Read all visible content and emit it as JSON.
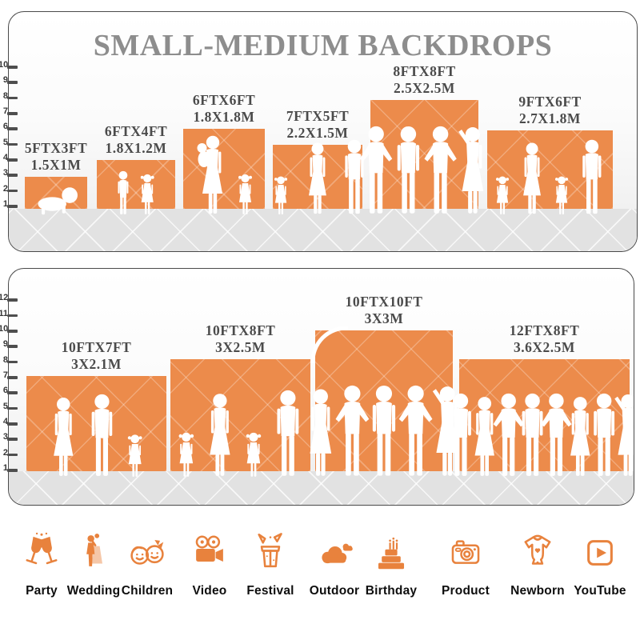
{
  "title": "SMALL-MEDIUM BACKDROPS",
  "panels": [
    {
      "ruler": [
        1,
        2,
        3,
        4,
        5,
        6,
        7,
        8,
        9,
        10
      ],
      "blocks": [
        {
          "size_ft": "5FTX3FT",
          "size_m": "1.5X1M",
          "figures": [
            "baby"
          ]
        },
        {
          "size_ft": "6FTX4FT",
          "size_m": "1.8X1.2M",
          "figures": [
            "boy",
            "girl"
          ]
        },
        {
          "size_ft": "6FTX6FT",
          "size_m": "1.8X1.8M",
          "figures": [
            "womanbaby",
            "girl"
          ]
        },
        {
          "size_ft": "7FTX5FT",
          "size_m": "2.2X1.5M",
          "figures": [
            "girl",
            "woman",
            "man"
          ]
        },
        {
          "size_ft": "8FTX8FT",
          "size_m": "2.5X2.5M",
          "figures": [
            "man2",
            "man",
            "man2",
            "woman2"
          ]
        },
        {
          "size_ft": "9FTX6FT",
          "size_m": "2.7X1.8M",
          "figures": [
            "girl",
            "woman",
            "girl",
            "man"
          ]
        }
      ]
    },
    {
      "ruler": [
        1,
        2,
        3,
        4,
        5,
        6,
        7,
        8,
        9,
        10,
        11,
        12
      ],
      "blocks": [
        {
          "size_ft": "10FTX7FT",
          "size_m": "3X2.1M",
          "figures": [
            "woman",
            "man",
            "girl"
          ]
        },
        {
          "size_ft": "10FTX8FT",
          "size_m": "3X2.5M",
          "figures": [
            "girl",
            "woman",
            "girl",
            "man"
          ]
        },
        {
          "size_ft": "10FTX10FT",
          "size_m": "3X3M",
          "figures": [
            "woman",
            "man2",
            "man",
            "man2",
            "woman2"
          ]
        },
        {
          "size_ft": "12FTX8FT",
          "size_m": "3.6X2.5M",
          "figures": [
            "man",
            "woman",
            "man2",
            "man",
            "man2",
            "woman",
            "man",
            "woman2"
          ]
        }
      ]
    }
  ],
  "categories": [
    {
      "label": "Party",
      "icon": "party-icon"
    },
    {
      "label": "Wedding",
      "icon": "wedding-icon"
    },
    {
      "label": "Children",
      "icon": "children-icon"
    },
    {
      "label": "Video",
      "icon": "video-icon"
    },
    {
      "label": "Festival",
      "icon": "festival-icon"
    },
    {
      "label": "Outdoor",
      "icon": "outdoor-icon"
    },
    {
      "label": "Birthday",
      "icon": "birthday-icon"
    },
    {
      "label": "Product",
      "icon": "product-icon"
    },
    {
      "label": "Newborn",
      "icon": "newborn-icon"
    },
    {
      "label": "YouTube",
      "icon": "youtube-icon"
    }
  ],
  "colors": {
    "backdrop_orange": "#ec8b4b",
    "icon_orange": "#e8823d",
    "title_gray": "#8d8d8d",
    "label_gray": "#4b4b4b",
    "ground_gray": "#e2e2e2"
  }
}
